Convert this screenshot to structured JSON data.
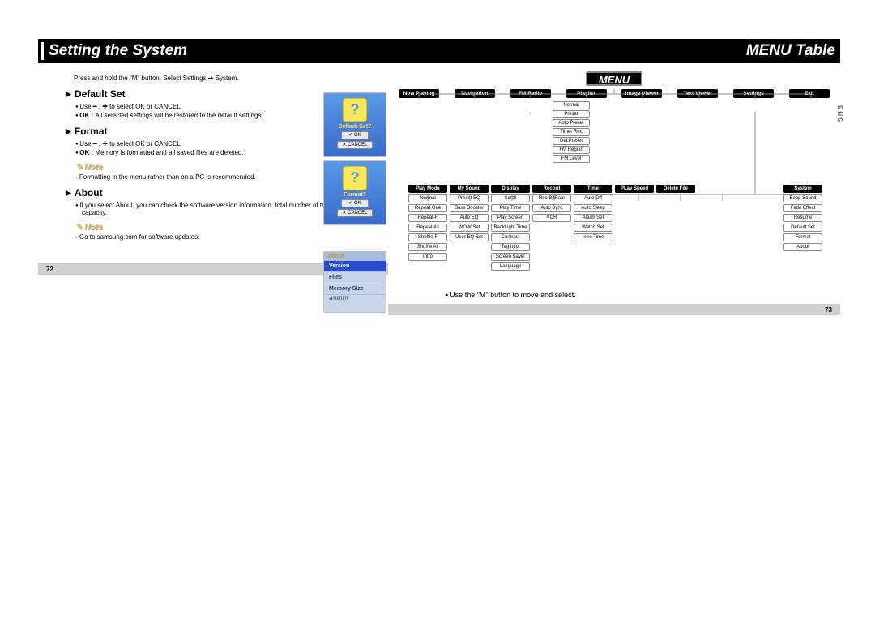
{
  "header": {
    "left": "Setting the System",
    "right": "MENU Table"
  },
  "left": {
    "intro": "Press and hold the \"M\" button. Select Settings ➔ System.",
    "defaultSet": {
      "heading": "Default Set",
      "b1": "Use ━ , ✚ to select OK or CANCEL.",
      "b2_pre": "OK : ",
      "b2": "All selected settings will be restored to the default settings."
    },
    "format": {
      "heading": "Format",
      "b1": "Use ━ , ✚ to select OK or CANCEL.",
      "b2_pre": "OK : ",
      "b2": "Memory is formatted and all saved files are deleted."
    },
    "note1": {
      "heading": "Note",
      "text": "- Formatting in the menu rather than on a PC is recommended."
    },
    "about": {
      "heading": "About",
      "b1": "If you select About, you can check the software version information, total number of tracks and memory capacity."
    },
    "note2": {
      "heading": "Note",
      "text": "- Go to samsung.com for software updates."
    },
    "dev1": {
      "lbl": "Default Set?",
      "ok": "✓ OK",
      "cancel": "✕ CANCEL"
    },
    "dev2": {
      "lbl": "Format?",
      "ok": "✓ OK",
      "cancel": "✕ CANCEL"
    },
    "dev3": {
      "h": "About",
      "r1": "Version",
      "r2": "Files",
      "r3": "Memory Size",
      "ret": "Return"
    },
    "pageNum": "72"
  },
  "right": {
    "menu": "MENU",
    "lang": "ENG",
    "top": [
      "Now Playing",
      "Navigation",
      "FM Radio",
      "Playlist",
      "Image Viewer",
      "Text Viewer",
      "Settings",
      "Exit"
    ],
    "fm": [
      "Normal",
      "Preset",
      "Auto Preset",
      "Timer Rec",
      "Del.Preset",
      "FM Region",
      "FM Level"
    ],
    "setHeads": [
      "Play Mode",
      "My Sound",
      "Display",
      "Record",
      "Time",
      "PLay Speed",
      "Delete File",
      "System"
    ],
    "cols": {
      "0": [
        "Normal",
        "Repeat One",
        "Repeat-F",
        "Repeat All",
        "Shuffle-F",
        "Shuffle All",
        "Intro"
      ],
      "1": [
        "Preset EQ",
        "Bass Booster",
        "Auto EQ",
        "WOW Set",
        "User EQ Set"
      ],
      "2": [
        "Scroll",
        "Play Time",
        "Play Screen",
        "BackLight Time",
        "Contrast",
        "Tag Info.",
        "Screen Saver",
        "Language"
      ],
      "3": [
        "Rec BitRate",
        "Auto Sync",
        "VOR"
      ],
      "4": [
        "Auto Off",
        "Auto Sleep",
        "Alarm Set",
        "Watch Set",
        "Intro Time"
      ],
      "5": [],
      "6": [],
      "7": [
        "Beep Sound",
        "Fade Effect",
        "Resume",
        "Default Set",
        "Format",
        "About"
      ]
    },
    "footer": "Use the \"M\" button to move and select.",
    "pageNum": "73"
  }
}
